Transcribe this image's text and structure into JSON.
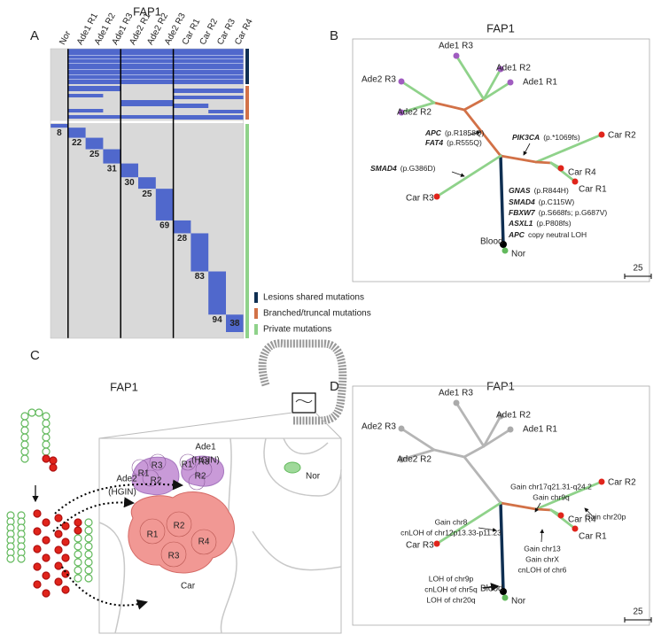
{
  "panelA": {
    "letter": "A",
    "title": "FAP1",
    "columns": [
      "Nor",
      "Ade1 R1",
      "Ade1 R2",
      "Ade1 R3",
      "Ade2 R1",
      "Ade2 R2",
      "Ade2 R3",
      "Car R1",
      "Car R2",
      "Car R3",
      "Car R4"
    ],
    "privateCounts": [
      8,
      22,
      25,
      31,
      30,
      25,
      69,
      28,
      83,
      94,
      38
    ],
    "legend": [
      "Lesions shared mutations",
      "Branched/truncal mutations",
      "Private mutations"
    ]
  },
  "panelB": {
    "letter": "B",
    "title": "FAP1",
    "leaves": [
      "Ade2 R3",
      "Ade1 R3",
      "Ade1 R2",
      "Ade1 R1",
      "Ade2 R2",
      "Car R2",
      "Car R4",
      "Car R1",
      "Car R3",
      "Blood",
      "Nor"
    ],
    "annotations": [
      {
        "gene": "APC",
        "change": "(p.R1858Q)"
      },
      {
        "gene": "FAT4",
        "change": "(p.R555Q)"
      },
      {
        "gene": "PIK3CA",
        "change": "(p.*1069fs)"
      },
      {
        "gene": "SMAD4",
        "change": "(p.G386D)"
      },
      {
        "gene": "GNAS",
        "change": "(p.R844H)"
      },
      {
        "gene": "SMAD4",
        "change": "(p.C115W)"
      },
      {
        "gene": "FBXW7",
        "change": "(p.S668fs;  p.G687V)"
      },
      {
        "gene": "ASXL1",
        "change": "(p.P808fs)"
      },
      {
        "gene": "APC",
        "change": "copy neutral LOH"
      }
    ],
    "scale": 25
  },
  "panelC": {
    "letter": "C",
    "title": "FAP1",
    "ade1": "Ade1",
    "ade1Grade": "(HGIN)",
    "ade1Regions": [
      "R1",
      "R3",
      "R2"
    ],
    "ade2": "Ade2",
    "ade2Grade": "(HGIN)",
    "ade2Regions": [
      "R3",
      "R1",
      "R2"
    ],
    "nor": "Nor",
    "car": "Car",
    "carRegions": [
      "R1",
      "R2",
      "R4",
      "R3"
    ]
  },
  "panelD": {
    "letter": "D",
    "title": "FAP1",
    "leaves": [
      "Ade2 R3",
      "Ade1 R3",
      "Ade1 R2",
      "Ade1 R1",
      "Ade2 R2",
      "Car R2",
      "Car R4",
      "Car R1",
      "Car R3",
      "Blood",
      "Nor"
    ],
    "annotations": [
      "Gain chr17q21.31-q24.2",
      "Gain chr9q",
      "Gain chr20p",
      "Gain chr8",
      "cnLOH of chr12p13.33-p11.23",
      "Gain chr13",
      "Gain chrX",
      "cnLOH of chr6",
      "LOH of chr9p",
      "cnLOH of chr5q",
      "LOH of chr20q"
    ],
    "scale": 25
  }
}
